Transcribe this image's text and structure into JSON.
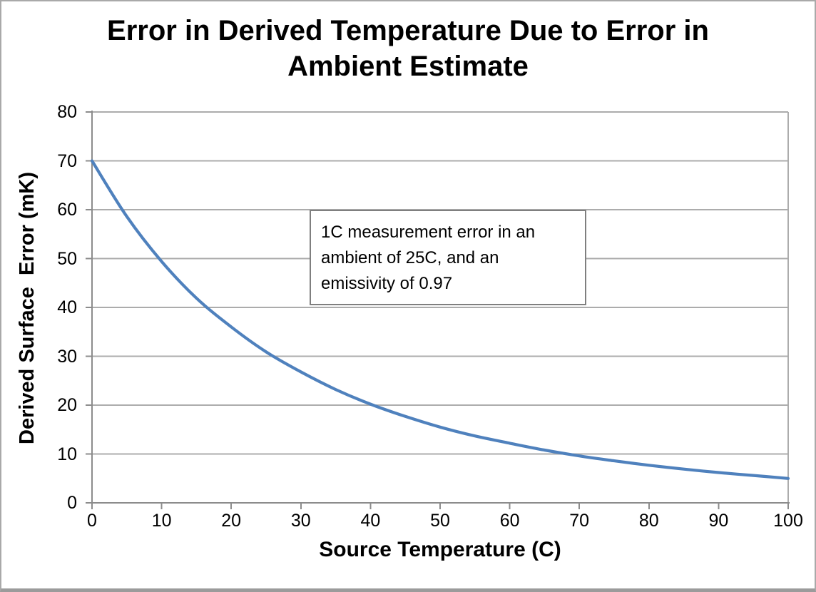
{
  "chart_data": {
    "type": "line",
    "title": "Error in Derived Temperature Due to Error in Ambient Estimate",
    "title_lines": [
      "Error in Derived Temperature Due to Error in",
      "Ambient Estimate"
    ],
    "xlabel": "Source Temperature (C)",
    "ylabel": "Derived Surface  Error (mK)",
    "x": [
      0,
      5,
      10,
      15,
      20,
      25,
      30,
      35,
      40,
      45,
      50,
      55,
      60,
      65,
      70,
      75,
      80,
      85,
      90,
      95,
      100
    ],
    "values": [
      70,
      58.6,
      49.4,
      41.9,
      36.0,
      30.9,
      26.8,
      23.2,
      20.2,
      17.7,
      15.5,
      13.7,
      12.2,
      10.8,
      9.6,
      8.6,
      7.7,
      6.9,
      6.2,
      5.6,
      5.0
    ],
    "xlim": [
      0,
      100
    ],
    "ylim": [
      0,
      80
    ],
    "x_ticks": [
      0,
      10,
      20,
      30,
      40,
      50,
      60,
      70,
      80,
      90,
      100
    ],
    "y_ticks": [
      0,
      10,
      20,
      30,
      40,
      50,
      60,
      70,
      80
    ],
    "grid": "horizontal-major",
    "legend": false,
    "annotation": {
      "lines": [
        "1C measurement error in an",
        "ambient of 25C, and an",
        "emissivity of 0.97"
      ]
    }
  },
  "colors": {
    "line": "#4F81BD",
    "gridline": "#ACACAC",
    "axis": "#8C8C8C",
    "text": "#000000",
    "annotation_border": "#7F7F7F",
    "frame_border": "#A9A9A9"
  }
}
